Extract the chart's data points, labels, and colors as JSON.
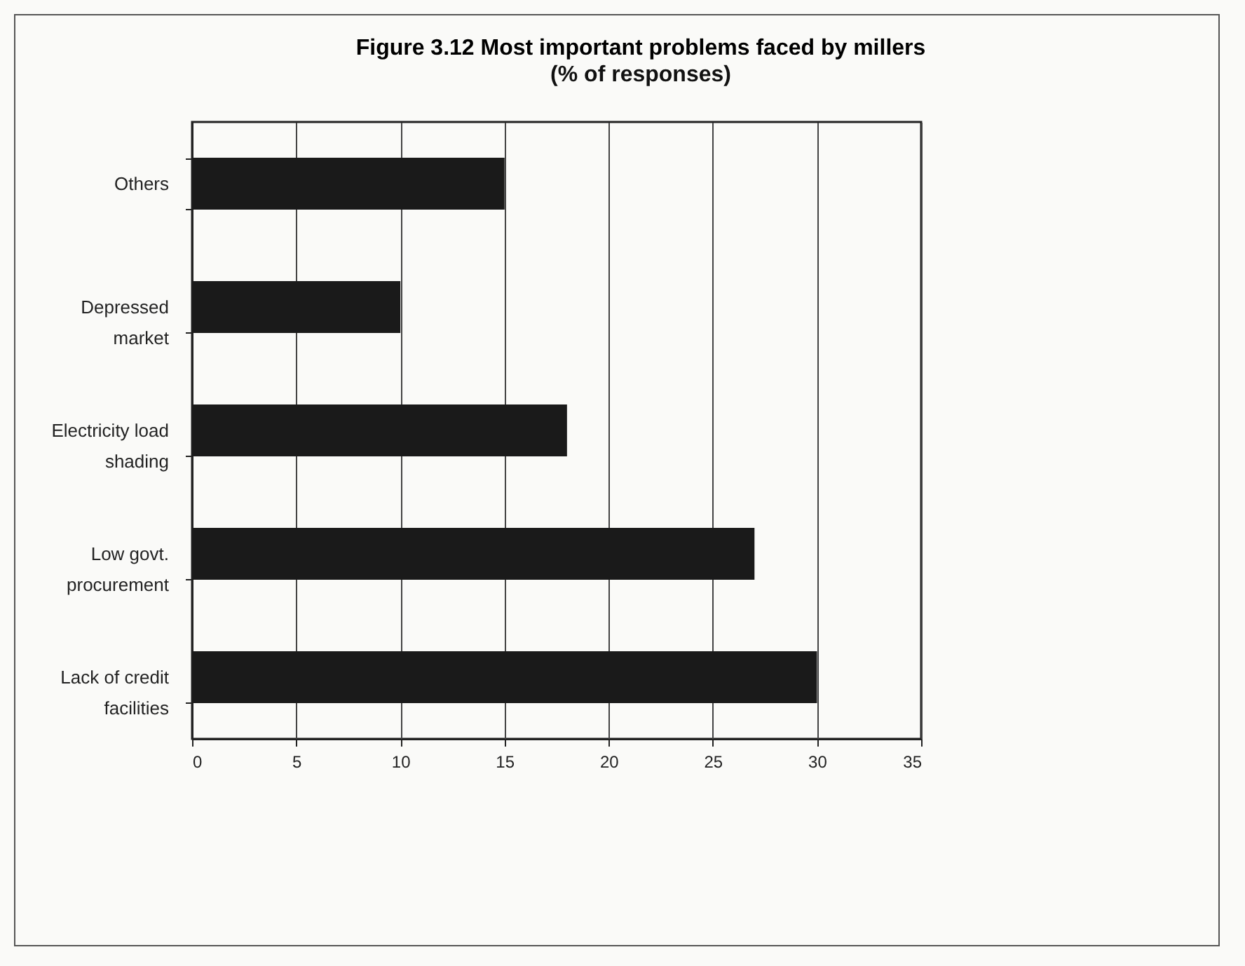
{
  "chart_data": {
    "type": "bar",
    "orientation": "horizontal",
    "title": "Figure 3.12  Most important problems faced by millers",
    "subtitle": "(% of responses)",
    "categories": [
      "Others",
      "Depressed market",
      "Electricity load shading",
      "Low govt. procurement",
      "Lack of credit facilities"
    ],
    "values": [
      15,
      10,
      18,
      27,
      30
    ],
    "color": "#1a1a1a",
    "xlim": [
      0,
      35
    ],
    "xticks": [
      0,
      5,
      10,
      15,
      20,
      25,
      30,
      35
    ],
    "grid": "x"
  }
}
